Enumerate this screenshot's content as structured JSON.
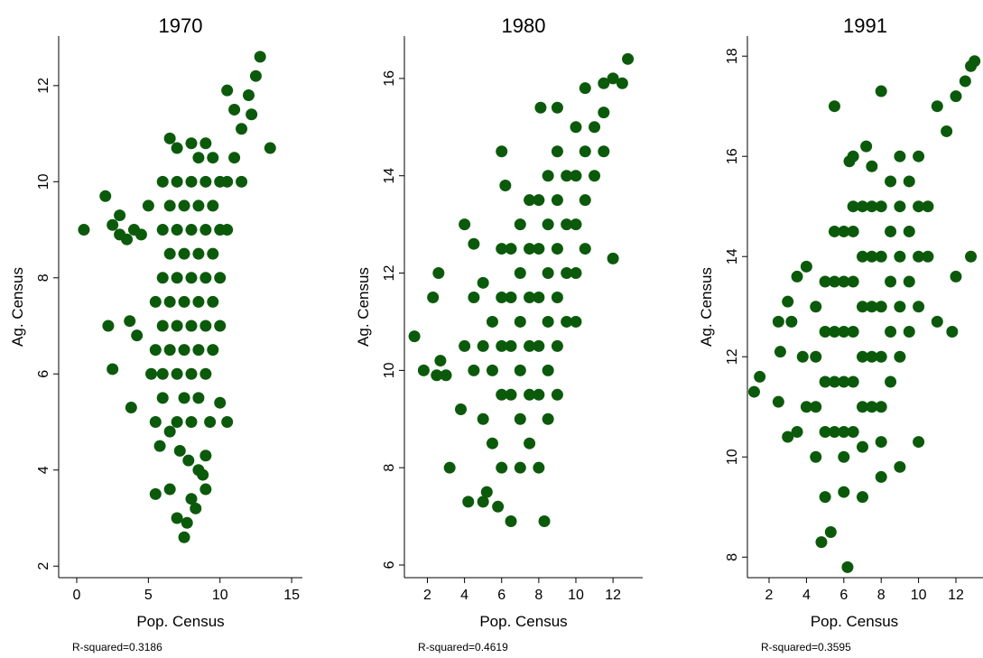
{
  "chart_data": [
    {
      "type": "scatter",
      "title": "1970",
      "x_label": "Pop. Census",
      "y_label": "Ag. Census",
      "annotation": "R-squared=0.3186",
      "color": "#0b5a0b",
      "xlim": [
        -1.26,
        15.75
      ],
      "ylim": [
        1.76,
        13.03
      ],
      "xticks": [
        0,
        5,
        10,
        15
      ],
      "yticks": [
        2,
        4,
        6,
        8,
        10,
        12
      ],
      "x": [
        0.5,
        2,
        2.5,
        3,
        2.2,
        2.5,
        3,
        3.5,
        4,
        4.5,
        5,
        3.7,
        4.2,
        3.8,
        5.5,
        6.5,
        7,
        7.5,
        7.7,
        8,
        8.3,
        9,
        9.3,
        10,
        10.5,
        12.8,
        12.5,
        13.5,
        12,
        11,
        11.5,
        10.5,
        6.5,
        7,
        12.2,
        5.2,
        5.8,
        6,
        8.5,
        9,
        8.8,
        6,
        6,
        6,
        6,
        6.5,
        6.5,
        6.5,
        6.5,
        7,
        7,
        7,
        7,
        7,
        7.5,
        7.5,
        7.5,
        7.5,
        8,
        8,
        8,
        8,
        8,
        8.5,
        8.5,
        8.5,
        8.5,
        8.5,
        9,
        9,
        9,
        9,
        9.5,
        9.5,
        9.5,
        9.5,
        10,
        10,
        10,
        10.5,
        10.5,
        11,
        5.5,
        5.5,
        5.5,
        7,
        7.5,
        8,
        8.5,
        9,
        6,
        6.5,
        7.2,
        7.8,
        9.5,
        10,
        11.5,
        9,
        8
      ],
      "values": [
        9,
        9.7,
        9.1,
        9.3,
        7,
        6.1,
        8.9,
        8.8,
        9,
        8.9,
        9.5,
        7.1,
        6.8,
        5.3,
        3.5,
        3.6,
        3,
        2.6,
        2.9,
        3.4,
        3.2,
        3.6,
        5,
        5.4,
        5,
        12.6,
        12.2,
        10.7,
        11.8,
        11.5,
        11.1,
        11.9,
        10.9,
        10.7,
        11.4,
        6,
        4.5,
        5.5,
        4,
        4.3,
        3.9,
        6,
        7,
        8,
        9,
        6.5,
        7.5,
        8.5,
        9.5,
        6,
        7,
        8,
        9,
        10,
        6.5,
        7.5,
        8.5,
        9.5,
        6,
        7,
        8,
        9,
        10,
        6.5,
        7.5,
        8.5,
        9.5,
        10.5,
        7,
        8,
        9,
        10,
        7.5,
        8.5,
        9.5,
        10.5,
        8,
        9,
        10,
        9,
        10,
        10.5,
        5,
        6.5,
        7.5,
        5,
        5.5,
        5,
        5.5,
        6,
        10,
        4.8,
        4.4,
        4.2,
        6.5,
        7,
        10,
        10.8,
        10.8
      ]
    },
    {
      "type": "scatter",
      "title": "1980",
      "x_label": "Pop. Census",
      "y_label": "Ag. Census",
      "annotation": "R-squared=0.4619",
      "color": "#0b5a0b",
      "xlim": [
        0.76,
        13.6
      ],
      "ylim": [
        5.74,
        16.87
      ],
      "xticks": [
        2,
        4,
        6,
        8,
        10,
        12
      ],
      "yticks": [
        6,
        8,
        10,
        12,
        14,
        16
      ],
      "x": [
        1.3,
        1.8,
        2.5,
        2.7,
        2.6,
        2.3,
        3,
        3.2,
        4.2,
        4,
        4.5,
        3.8,
        5,
        5.2,
        5.8,
        6.5,
        8.3,
        6,
        6.2,
        7.5,
        8.1,
        9,
        12.8,
        12.5,
        12,
        11.5,
        11.5,
        12,
        10.5,
        5,
        4.5,
        5.5,
        6,
        7,
        8,
        5,
        5.5,
        5.5,
        6,
        6,
        6,
        6.5,
        6.5,
        6.5,
        6.5,
        7,
        7,
        7,
        7,
        7,
        7.5,
        7.5,
        7.5,
        7.5,
        8,
        8,
        8,
        8,
        8,
        8.5,
        8.5,
        8.5,
        8.5,
        8.5,
        9,
        9,
        9,
        9,
        9,
        9.5,
        9.5,
        9.5,
        9.5,
        10,
        10,
        10,
        10,
        10.5,
        10.5,
        10.5,
        11,
        11,
        11.5,
        6,
        5,
        4.5,
        4,
        7.5,
        8.5,
        9,
        10
      ],
      "values": [
        10.7,
        10,
        9.9,
        10.2,
        12,
        11.5,
        9.9,
        8,
        7.3,
        13,
        12.6,
        9.2,
        7.3,
        7.5,
        7.2,
        6.9,
        6.9,
        14.5,
        13.8,
        13.5,
        15.4,
        15.4,
        16.4,
        15.9,
        16,
        15.3,
        15.9,
        12.3,
        15.8,
        11.8,
        11.5,
        8.5,
        8,
        8,
        8,
        9,
        10,
        11,
        9.5,
        10.5,
        11.5,
        9.5,
        10.5,
        11.5,
        12.5,
        9,
        10,
        11,
        12,
        13,
        9.5,
        10.5,
        11.5,
        12.5,
        9.5,
        10.5,
        11.5,
        12.5,
        13.5,
        10,
        11,
        12,
        13,
        14,
        10.5,
        11.5,
        12.5,
        13.5,
        14.5,
        11,
        12,
        13,
        14,
        12,
        13,
        14,
        15,
        12.5,
        13.5,
        14.5,
        14,
        15,
        14.5,
        12.5,
        10.5,
        10,
        10.5,
        8.5,
        9,
        9.5,
        11
      ]
    },
    {
      "type": "scatter",
      "title": "1991",
      "x_label": "Pop. Census",
      "y_label": "Ag. Census",
      "annotation": "R-squared=0.3595",
      "color": "#0b5a0b",
      "xlim": [
        0.84,
        13.45
      ],
      "ylim": [
        7.59,
        18.4
      ],
      "xticks": [
        2,
        4,
        6,
        8,
        10,
        12
      ],
      "yticks": [
        8,
        10,
        12,
        14,
        16,
        18
      ],
      "x": [
        1.2,
        1.5,
        2.5,
        2.6,
        2.5,
        3,
        3.5,
        3.2,
        3,
        3.5,
        4,
        4.8,
        5.3,
        6.2,
        5.5,
        8,
        11,
        12.8,
        12.5,
        13,
        12,
        11.5,
        6.3,
        6.5,
        7.2,
        7.5,
        12.8,
        12,
        11,
        11.8,
        5,
        6,
        7,
        8,
        9,
        10,
        4.5,
        4.5,
        4.5,
        4.5,
        5,
        5,
        5,
        5,
        5.5,
        5.5,
        5.5,
        5.5,
        5.5,
        6,
        6,
        6,
        6,
        6,
        6.5,
        6.5,
        6.5,
        6.5,
        6.5,
        6.5,
        7,
        7,
        7,
        7,
        7,
        7.5,
        7.5,
        7.5,
        7.5,
        7.5,
        8,
        8,
        8,
        8,
        8,
        8.5,
        8.5,
        8.5,
        8.5,
        8.5,
        9,
        9,
        9,
        9,
        9,
        9.5,
        9.5,
        9.5,
        9.5,
        10,
        10,
        10,
        10,
        10.5,
        10.5,
        3.8,
        4,
        6,
        7,
        8
      ],
      "values": [
        11.3,
        11.6,
        12.7,
        12.1,
        11.1,
        10.4,
        10.5,
        12.7,
        13.1,
        13.6,
        13.8,
        8.3,
        8.5,
        7.8,
        17,
        17.3,
        17,
        17.8,
        17.5,
        17.9,
        17.2,
        16.5,
        15.9,
        16,
        16.2,
        15.8,
        14,
        13.6,
        12.7,
        12.5,
        9.2,
        9.3,
        9.2,
        9.6,
        9.8,
        10.3,
        10,
        11,
        12,
        13,
        10.5,
        11.5,
        12.5,
        13.5,
        10.5,
        11.5,
        12.5,
        13.5,
        14.5,
        10.5,
        11.5,
        12.5,
        13.5,
        14.5,
        10.5,
        11.5,
        12.5,
        13.5,
        14.5,
        15,
        11,
        12,
        13,
        14,
        15,
        11,
        12,
        13,
        14,
        15,
        11,
        12,
        13,
        14,
        15,
        11.5,
        12.5,
        13.5,
        14.5,
        15.5,
        12,
        13,
        14,
        15,
        16,
        12.5,
        13.5,
        14.5,
        15.5,
        13,
        14,
        15,
        16,
        14,
        15,
        12,
        11,
        10,
        10.2,
        10.3
      ]
    }
  ]
}
